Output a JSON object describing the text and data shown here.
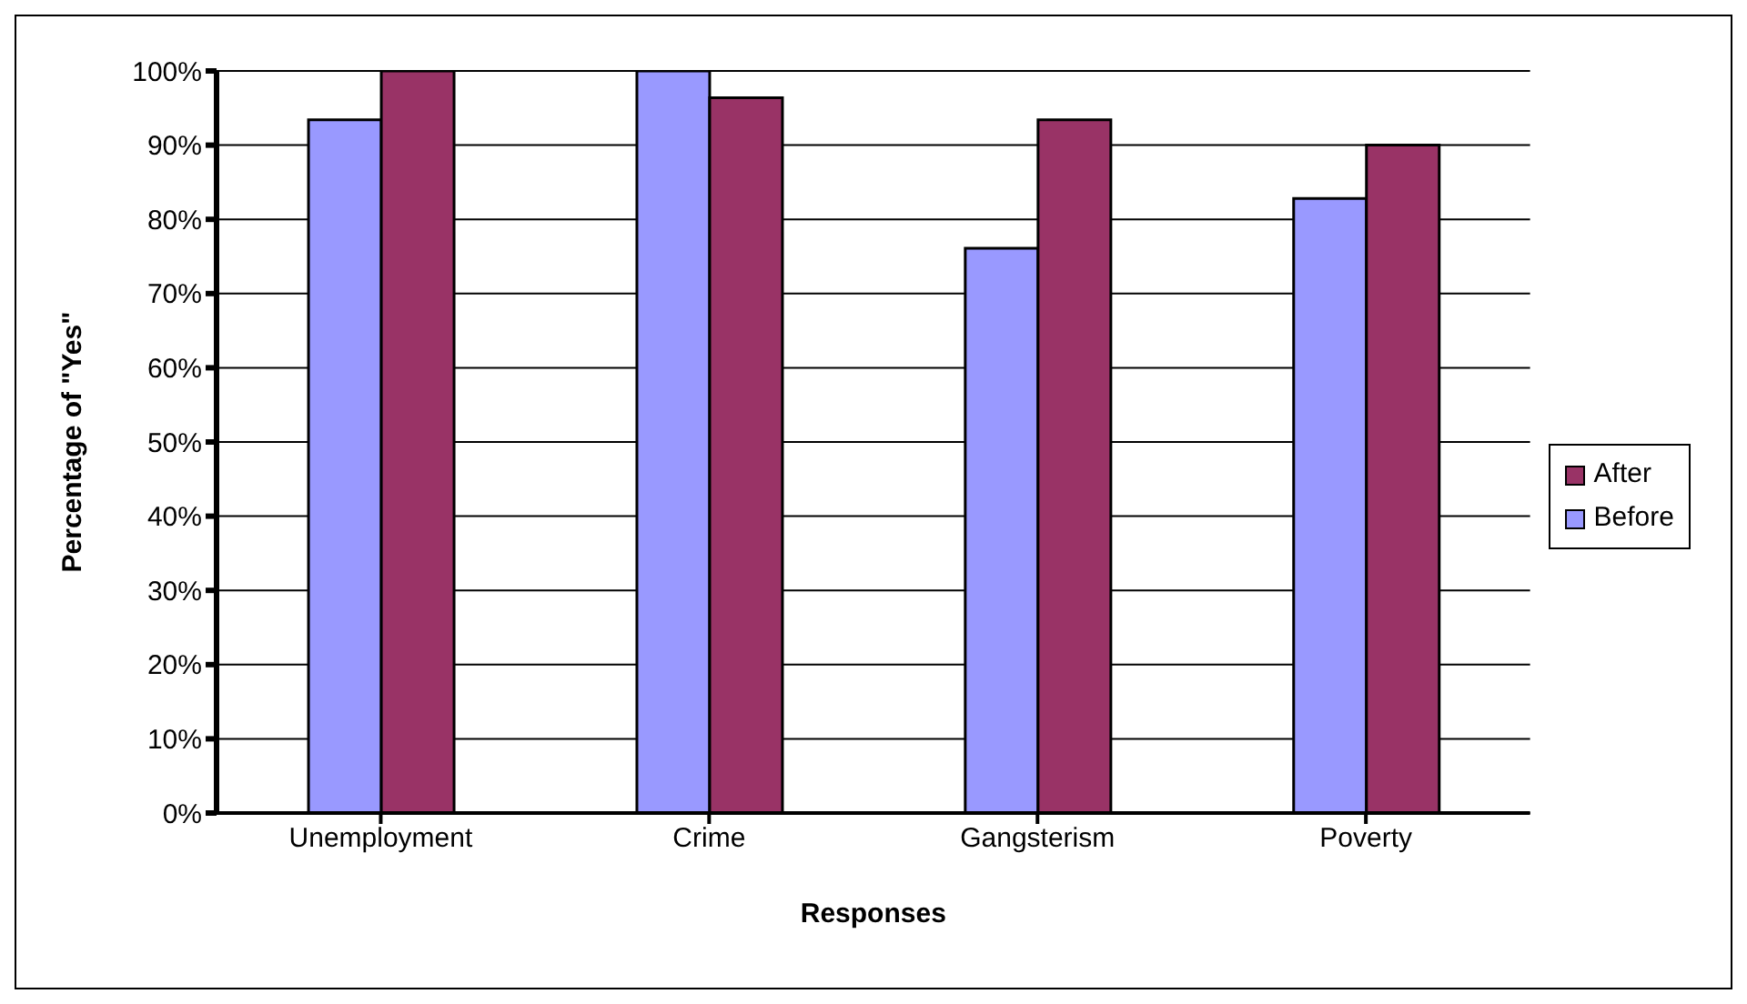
{
  "chart_data": {
    "type": "bar",
    "xlabel": "Responses",
    "ylabel": "Percentage of \"Yes\"",
    "categories": [
      "Unemployment",
      "Crime",
      "Gangsterism",
      "Poverty"
    ],
    "series": [
      {
        "name": "Before",
        "color": "#9999ff",
        "values": [
          93.4,
          100,
          76.1,
          82.8
        ]
      },
      {
        "name": "After",
        "color": "#993366",
        "values": [
          100,
          96.4,
          93.4,
          90
        ]
      }
    ],
    "ylim": [
      0,
      100
    ],
    "yticks": [
      {
        "value": 0,
        "label": "0%"
      },
      {
        "value": 10,
        "label": "10%"
      },
      {
        "value": 20,
        "label": "20%"
      },
      {
        "value": 30,
        "label": "30%"
      },
      {
        "value": 40,
        "label": "40%"
      },
      {
        "value": 50,
        "label": "50%"
      },
      {
        "value": 60,
        "label": "60%"
      },
      {
        "value": 70,
        "label": "70%"
      },
      {
        "value": 80,
        "label": "80%"
      },
      {
        "value": 90,
        "label": "90%"
      },
      {
        "value": 100,
        "label": "100%"
      }
    ],
    "grid": "y",
    "legend": "right"
  }
}
